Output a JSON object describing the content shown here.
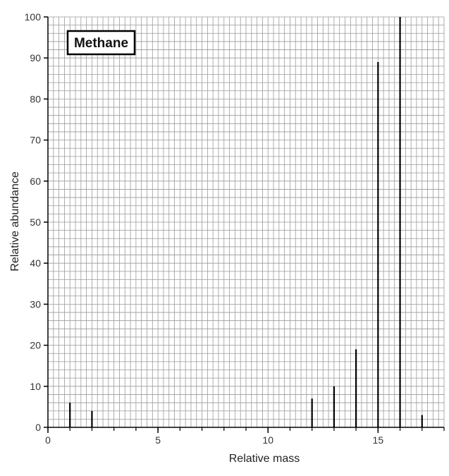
{
  "chart_data": {
    "type": "bar",
    "title": "Methane",
    "xlabel": "Relative mass",
    "ylabel": "Relative abundance",
    "xlim": [
      0,
      18
    ],
    "ylim": [
      0,
      100
    ],
    "x_ticks": [
      0,
      5,
      10,
      15
    ],
    "y_ticks": [
      0,
      10,
      20,
      30,
      40,
      50,
      60,
      70,
      80,
      90,
      100
    ],
    "grid": true,
    "legend_position": "top-left",
    "series": [
      {
        "x": [
          1,
          2,
          12,
          13,
          14,
          15,
          16,
          17
        ],
        "values": [
          6,
          4,
          7,
          10,
          19,
          89,
          100,
          3
        ]
      }
    ]
  },
  "colors": {
    "grid": "#9a9a9a",
    "bar": "#000000",
    "axis": "#000000",
    "label": "#333333"
  }
}
